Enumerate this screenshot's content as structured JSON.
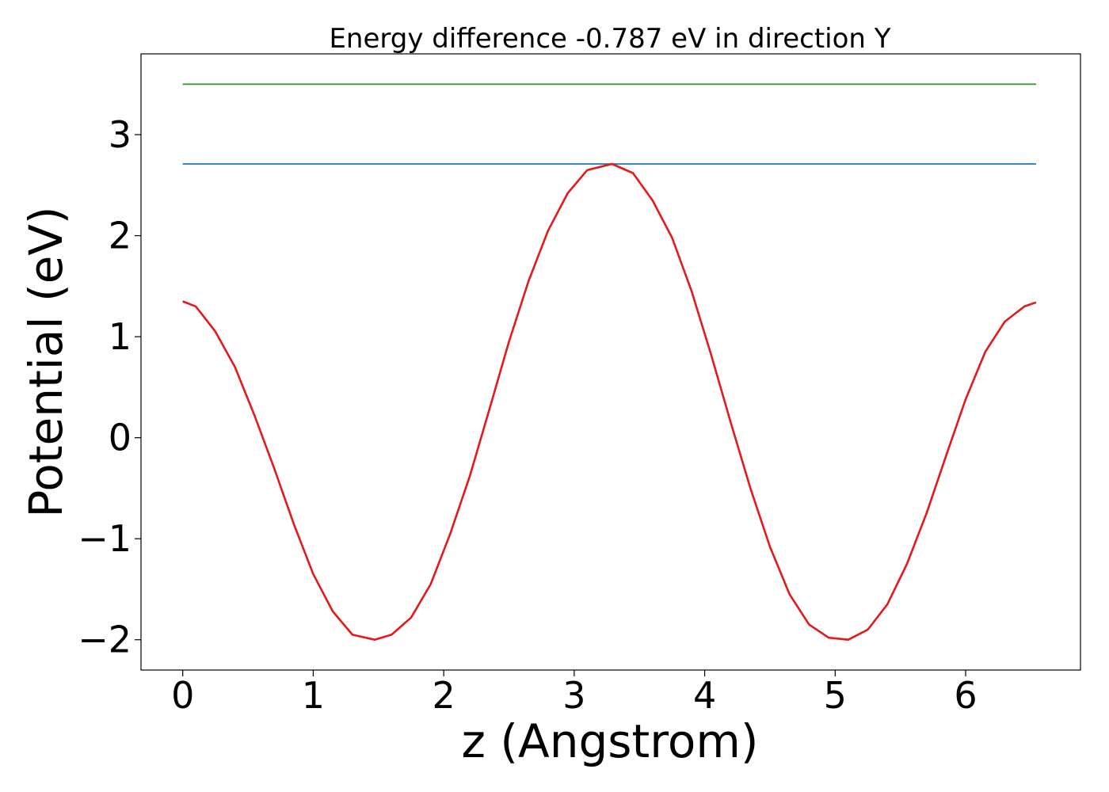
{
  "chart_data": {
    "type": "line",
    "title": "Energy difference -0.787 eV in direction Y",
    "xlabel": "z (Angstrom)",
    "ylabel": "Potential (eV)",
    "xlim": [
      -0.32,
      6.88
    ],
    "ylim": [
      -2.3,
      3.8
    ],
    "x_ticks": [
      {
        "value": 0,
        "label": "0"
      },
      {
        "value": 1,
        "label": "1"
      },
      {
        "value": 2,
        "label": "2"
      },
      {
        "value": 3,
        "label": "3"
      },
      {
        "value": 4,
        "label": "4"
      },
      {
        "value": 5,
        "label": "5"
      },
      {
        "value": 6,
        "label": "6"
      }
    ],
    "y_ticks": [
      {
        "value": -2,
        "label": "−2"
      },
      {
        "value": -1,
        "label": "−1"
      },
      {
        "value": 0,
        "label": "0"
      },
      {
        "value": 1,
        "label": "1"
      },
      {
        "value": 2,
        "label": "2"
      },
      {
        "value": 3,
        "label": "3"
      }
    ],
    "grid": false,
    "series": [
      {
        "color": "#2ca02c",
        "x": [
          0,
          6.54
        ],
        "y": [
          3.5,
          3.5
        ]
      },
      {
        "color": "#1f77b4",
        "x": [
          0,
          6.54
        ],
        "y": [
          2.71,
          2.71
        ]
      },
      {
        "color": "#e31a1c",
        "x": [
          0,
          0.1,
          0.25,
          0.4,
          0.55,
          0.7,
          0.85,
          1.0,
          1.15,
          1.3,
          1.47,
          1.6,
          1.75,
          1.9,
          2.05,
          2.2,
          2.35,
          2.5,
          2.65,
          2.8,
          2.95,
          3.1,
          3.29,
          3.45,
          3.6,
          3.75,
          3.9,
          4.05,
          4.2,
          4.35,
          4.5,
          4.65,
          4.8,
          4.95,
          5.1,
          5.25,
          5.4,
          5.55,
          5.7,
          5.85,
          6.0,
          6.15,
          6.3,
          6.45,
          6.54
        ],
        "y": [
          1.35,
          1.3,
          1.05,
          0.7,
          0.22,
          -0.3,
          -0.85,
          -1.35,
          -1.72,
          -1.95,
          -2.0,
          -1.95,
          -1.78,
          -1.45,
          -0.95,
          -0.38,
          0.28,
          0.95,
          1.55,
          2.05,
          2.42,
          2.65,
          2.71,
          2.62,
          2.35,
          1.98,
          1.45,
          0.82,
          0.15,
          -0.5,
          -1.08,
          -1.55,
          -1.85,
          -1.98,
          -2.0,
          -1.9,
          -1.65,
          -1.25,
          -0.75,
          -0.18,
          0.38,
          0.85,
          1.15,
          1.3,
          1.34
        ]
      }
    ]
  }
}
